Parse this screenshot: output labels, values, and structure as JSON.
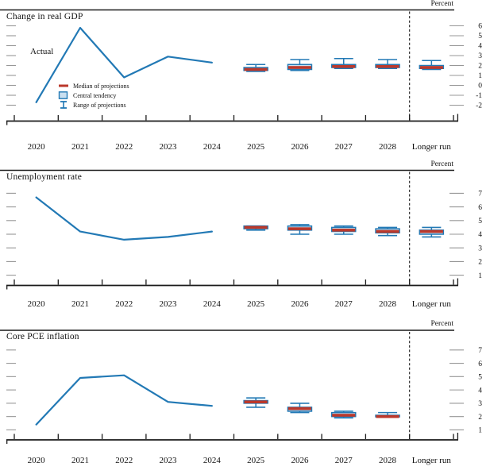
{
  "figure": {
    "percent_label": "Percent",
    "actual_label": "Actual",
    "legend": [
      {
        "key": "median",
        "label": "Median of projections"
      },
      {
        "key": "central_tendency",
        "label": "Central tendency"
      },
      {
        "key": "range",
        "label": "Range of projections"
      }
    ],
    "colors": {
      "line_blue": "#2279b5",
      "central_tendency_fill": "#c9dff0",
      "median_red": "#bb382b",
      "tick_gray": "#979797",
      "axis_black": "#1a1a1a"
    }
  },
  "chart_data": [
    {
      "title": "Change in real GDP",
      "type": "line",
      "unit": "Percent",
      "x_categories": [
        "2020",
        "2021",
        "2022",
        "2023",
        "2024",
        "2025",
        "2026",
        "2027",
        "2028",
        "Longer run"
      ],
      "yticks": [
        6,
        5,
        4,
        3,
        2,
        1,
        0,
        -1,
        -2
      ],
      "ylim": [
        -3.6,
        7.6
      ],
      "actual": {
        "years": [
          "2020",
          "2021",
          "2022",
          "2023",
          "2024"
        ],
        "values": [
          -1.7,
          5.8,
          0.8,
          2.9,
          2.3
        ]
      },
      "projections": [
        {
          "label": "2025",
          "median": 1.6,
          "central_tendency": [
            1.5,
            1.8
          ],
          "range": [
            1.4,
            2.1
          ]
        },
        {
          "label": "2026",
          "median": 1.8,
          "central_tendency": [
            1.6,
            2.1
          ],
          "range": [
            1.5,
            2.6
          ]
        },
        {
          "label": "2027",
          "median": 1.9,
          "central_tendency": [
            1.8,
            2.1
          ],
          "range": [
            1.7,
            2.7
          ]
        },
        {
          "label": "2028",
          "median": 1.9,
          "central_tendency": [
            1.8,
            2.1
          ],
          "range": [
            1.7,
            2.6
          ]
        },
        {
          "label": "Longer run",
          "median": 1.8,
          "central_tendency": [
            1.7,
            2.0
          ],
          "range": [
            1.6,
            2.5
          ]
        }
      ],
      "has_actual_annotation": true,
      "has_legend": true
    },
    {
      "title": "Unemployment rate",
      "type": "line",
      "unit": "Percent",
      "x_categories": [
        "2020",
        "2021",
        "2022",
        "2023",
        "2024",
        "2025",
        "2026",
        "2027",
        "2028",
        "Longer run"
      ],
      "yticks": [
        7,
        6,
        5,
        4,
        3,
        2,
        1
      ],
      "ylim": [
        0.25,
        8.68
      ],
      "actual": {
        "years": [
          "2020",
          "2021",
          "2022",
          "2023",
          "2024"
        ],
        "values": [
          6.7,
          4.2,
          3.6,
          3.8,
          4.2
        ]
      },
      "projections": [
        {
          "label": "2025",
          "median": 4.5,
          "central_tendency": [
            4.4,
            4.6
          ],
          "range": [
            4.3,
            4.6
          ]
        },
        {
          "label": "2026",
          "median": 4.4,
          "central_tendency": [
            4.3,
            4.6
          ],
          "range": [
            4.0,
            4.7
          ]
        },
        {
          "label": "2027",
          "median": 4.3,
          "central_tendency": [
            4.2,
            4.5
          ],
          "range": [
            4.0,
            4.6
          ]
        },
        {
          "label": "2028",
          "median": 4.2,
          "central_tendency": [
            4.1,
            4.4
          ],
          "range": [
            3.9,
            4.5
          ]
        },
        {
          "label": "Longer run",
          "median": 4.2,
          "central_tendency": [
            4.0,
            4.3
          ],
          "range": [
            3.8,
            4.5
          ]
        }
      ],
      "has_actual_annotation": false,
      "has_legend": false
    },
    {
      "title": "Core PCE inflation",
      "type": "line",
      "unit": "Percent",
      "x_categories": [
        "2020",
        "2021",
        "2022",
        "2023",
        "2024",
        "2025",
        "2026",
        "2027",
        "2028",
        "Longer run"
      ],
      "yticks": [
        7,
        6,
        5,
        4,
        3,
        2,
        1
      ],
      "ylim": [
        0.25,
        8.48
      ],
      "actual": {
        "years": [
          "2020",
          "2021",
          "2022",
          "2023",
          "2024"
        ],
        "values": [
          1.4,
          4.9,
          5.1,
          3.1,
          2.8
        ]
      },
      "projections": [
        {
          "label": "2025",
          "median": 3.1,
          "central_tendency": [
            3.0,
            3.2
          ],
          "range": [
            2.7,
            3.4
          ]
        },
        {
          "label": "2026",
          "median": 2.6,
          "central_tendency": [
            2.4,
            2.7
          ],
          "range": [
            2.3,
            3.0
          ]
        },
        {
          "label": "2027",
          "median": 2.1,
          "central_tendency": [
            2.0,
            2.3
          ],
          "range": [
            1.9,
            2.4
          ]
        },
        {
          "label": "2028",
          "median": 2.0,
          "central_tendency": [
            2.0,
            2.1
          ],
          "range": [
            2.0,
            2.3
          ]
        }
      ],
      "has_actual_annotation": false,
      "has_legend": false
    }
  ]
}
